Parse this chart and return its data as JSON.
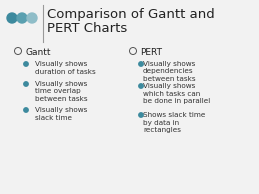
{
  "title_line1": "Comparison of Gantt and",
  "title_line2": "PERT Charts",
  "background_color": "#f2f2f2",
  "dot_colors": [
    "#3d8a9e",
    "#5aa0b0",
    "#8fbdc8"
  ],
  "dot_radii": [
    0.022,
    0.022,
    0.022
  ],
  "divider_color": "#999999",
  "left_header": "Gantt",
  "right_header": "PERT",
  "left_bullets": [
    "Visually shows\nduration of tasks",
    "Visually shows\ntime overlap\nbetween tasks",
    "Visually shows\nslack time"
  ],
  "right_bullets": [
    "Visually shows\ndependencies\nbetween tasks",
    "Visually shows\nwhich tasks can\nbe done in parallel",
    "Shows slack time\nby data in\nrectangles"
  ],
  "title_fontsize": 9.5,
  "header_fontsize": 6.5,
  "bullet_fontsize": 5.2,
  "title_color": "#222222",
  "header_color": "#222222",
  "bullet_color": "#333333",
  "bullet_marker_color": "#3d8a9e",
  "open_circle_color": "#555555"
}
